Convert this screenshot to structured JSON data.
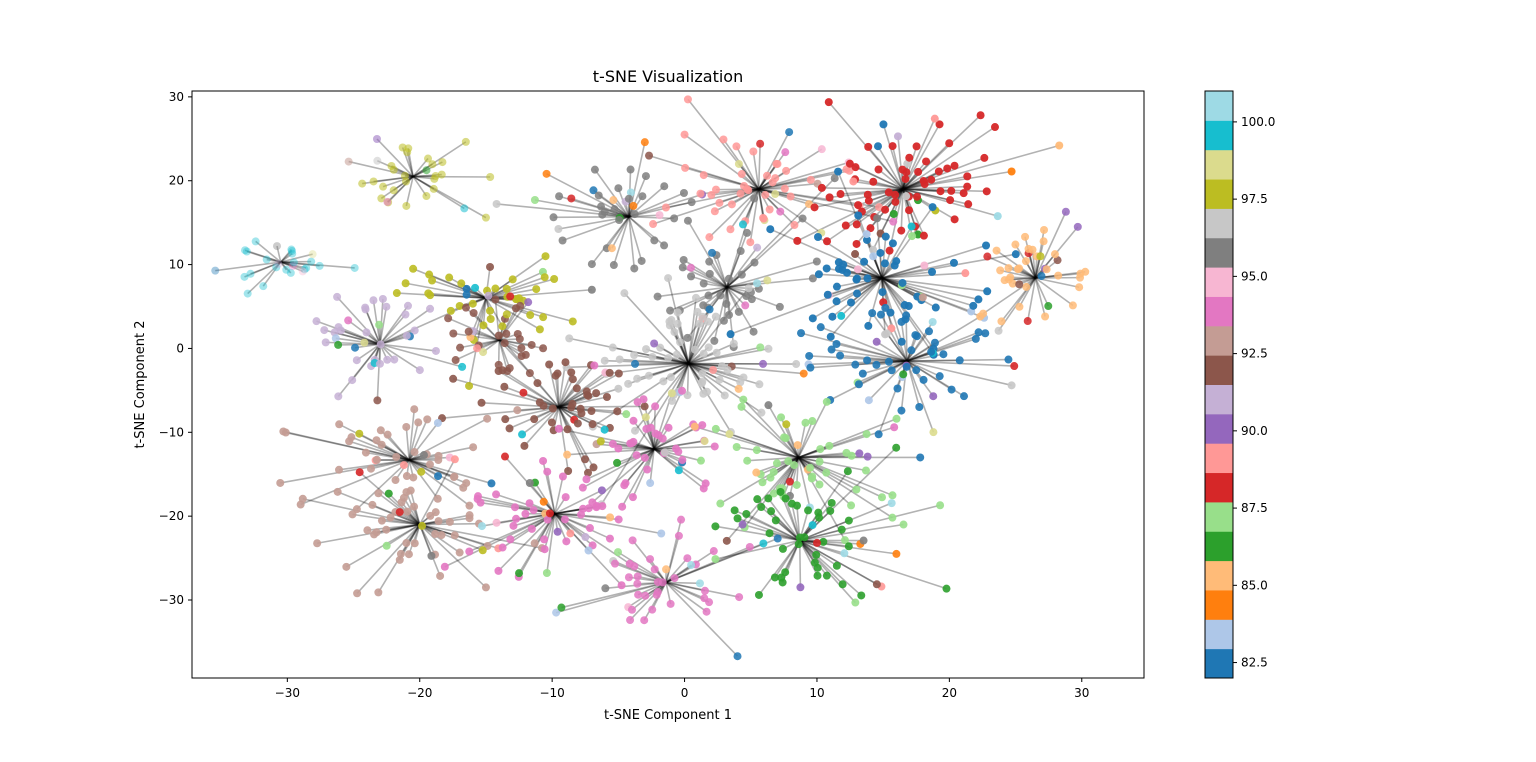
{
  "chart_data": {
    "type": "scatter",
    "title": "t-SNE Visualization",
    "xlabel": "t-SNE Component 1",
    "ylabel": "t-SNE Component 2",
    "xlim": [
      -37.2,
      34.7
    ],
    "ylim": [
      -39.3,
      30.7
    ],
    "xticks": [
      -30,
      -20,
      -10,
      0,
      10,
      20,
      30
    ],
    "yticks": [
      -30,
      -20,
      -10,
      0,
      10,
      20,
      30
    ],
    "colorbar": {
      "colormap": "tab20",
      "range": [
        82.0,
        101.0
      ],
      "ticks": [
        82.5,
        85.0,
        87.5,
        90.0,
        92.5,
        95.0,
        97.5,
        100.0
      ],
      "tick_labels": [
        "82.5",
        "85.0",
        "87.5",
        "90.0",
        "92.5",
        "95.0",
        "97.5",
        "100.0"
      ],
      "colors": [
        "#1f77b4",
        "#aec7e8",
        "#ff7f0e",
        "#ffbb78",
        "#2ca02c",
        "#98df8a",
        "#d62728",
        "#ff9896",
        "#9467bd",
        "#c5b0d5",
        "#8c564b",
        "#c49c94",
        "#e377c2",
        "#f7b6d2",
        "#7f7f7f",
        "#c7c7c7",
        "#bcbd22",
        "#dbdb8d",
        "#17becf",
        "#9edae5"
      ]
    },
    "edge_color": "#000000",
    "edge_alpha": 0.3,
    "clusters": [
      {
        "center": [
          -20.5,
          20.5
        ],
        "n": 30,
        "spread": 3.0,
        "color": "#bcbd22",
        "alpha": 0.55,
        "extras": [
          [
            -15.0,
            15.6,
            "#bcbd22"
          ]
        ]
      },
      {
        "center": [
          -30.5,
          10.3
        ],
        "n": 26,
        "spread": 2.8,
        "color": "#17becf",
        "alpha": 0.4,
        "extras": []
      },
      {
        "center": [
          -15.0,
          6.0
        ],
        "n": 40,
        "spread": 4.5,
        "color": "#bcbd22",
        "alpha": 0.9,
        "extras": [
          [
            -20.5,
            9.5,
            "#bcbd22"
          ],
          [
            -10.5,
            11.0,
            "#bcbd22"
          ],
          [
            -7.0,
            7.0,
            "#7f7f7f"
          ]
        ]
      },
      {
        "center": [
          -23.0,
          0.5
        ],
        "n": 38,
        "spread": 3.8,
        "color": "#c5b0d5",
        "alpha": 0.85,
        "extras": [
          [
            -16.8,
            -2.2,
            "#17becf"
          ],
          [
            -23.2,
            -6.2,
            "#8c564b"
          ]
        ]
      },
      {
        "center": [
          -14.0,
          1.0
        ],
        "n": 30,
        "spread": 3.5,
        "color": "#8c564b",
        "alpha": 0.85,
        "extras": []
      },
      {
        "center": [
          -4.2,
          15.7
        ],
        "n": 40,
        "spread": 4.5,
        "color": "#7f7f7f",
        "alpha": 0.85,
        "extras": [
          [
            -11.3,
            17.7,
            "#98df8a"
          ],
          [
            -3.0,
            24.6,
            "#ff7f0e"
          ]
        ]
      },
      {
        "center": [
          5.6,
          19.0
        ],
        "n": 55,
        "spread": 5.5,
        "color": "#ff9896",
        "alpha": 0.85,
        "extras": [
          [
            7.9,
            25.8,
            "#1f77b4"
          ],
          [
            0.0,
            25.5,
            "#ff9896"
          ]
        ]
      },
      {
        "center": [
          16.5,
          19.0
        ],
        "n": 75,
        "spread": 5.5,
        "color": "#d62728",
        "alpha": 0.95,
        "extras": [
          [
            28.3,
            24.2,
            "#ffbb78"
          ],
          [
            18.9,
            27.4,
            "#ff9896"
          ],
          [
            24.7,
            21.1,
            "#ff7f0e"
          ]
        ]
      },
      {
        "center": [
          3.2,
          7.3
        ],
        "n": 45,
        "spread": 5.0,
        "color": "#7f7f7f",
        "alpha": 0.85,
        "extras": []
      },
      {
        "center": [
          14.9,
          8.4
        ],
        "n": 70,
        "spread": 5.5,
        "color": "#1f77b4",
        "alpha": 0.95,
        "extras": []
      },
      {
        "center": [
          26.5,
          8.4
        ],
        "n": 40,
        "spread": 3.6,
        "color": "#ffbb78",
        "alpha": 0.85,
        "extras": [
          [
            29.7,
            14.5,
            "#9467bd"
          ],
          [
            28.8,
            16.3,
            "#9467bd"
          ]
        ]
      },
      {
        "center": [
          0.3,
          -1.8
        ],
        "n": 70,
        "spread": 6.0,
        "color": "#c7c7c7",
        "alpha": 0.85,
        "extras": [
          [
            9.0,
            -3.0,
            "#ff7f0e"
          ]
        ]
      },
      {
        "center": [
          16.8,
          -1.5
        ],
        "n": 55,
        "spread": 5.5,
        "color": "#1f77b4",
        "alpha": 0.9,
        "extras": [
          [
            24.7,
            -4.4,
            "#c7c7c7"
          ],
          [
            24.9,
            -2.1,
            "#d62728"
          ]
        ]
      },
      {
        "center": [
          -9.5,
          -7.0
        ],
        "n": 55,
        "spread": 5.0,
        "color": "#8c564b",
        "alpha": 0.9,
        "extras": [
          [
            -5.0,
            -4.8,
            "#c7c7c7"
          ]
        ]
      },
      {
        "center": [
          -2.3,
          -12.0
        ],
        "n": 50,
        "spread": 5.0,
        "color": "#e377c2",
        "alpha": 0.9,
        "extras": []
      },
      {
        "center": [
          8.6,
          -13.0
        ],
        "n": 60,
        "spread": 5.5,
        "color": "#98df8a",
        "alpha": 0.9,
        "extras": [
          [
            17.8,
            -13.0,
            "#1f77b4"
          ]
        ]
      },
      {
        "center": [
          -20.8,
          -13.3
        ],
        "n": 45,
        "spread": 5.0,
        "color": "#c49c94",
        "alpha": 0.9,
        "extras": [
          [
            -30.3,
            -9.9,
            "#c49c94"
          ]
        ]
      },
      {
        "center": [
          -20.0,
          -21.0
        ],
        "n": 50,
        "spread": 5.0,
        "color": "#c49c94",
        "alpha": 0.9,
        "extras": [
          [
            -15.0,
            -28.5,
            "#c49c94"
          ],
          [
            -26.2,
            -17.1,
            "#c49c94"
          ]
        ]
      },
      {
        "center": [
          -9.8,
          -19.7
        ],
        "n": 55,
        "spread": 5.0,
        "color": "#e377c2",
        "alpha": 0.9,
        "extras": [
          [
            -12.5,
            -26.8,
            "#2ca02c"
          ]
        ]
      },
      {
        "center": [
          8.7,
          -22.9
        ],
        "n": 55,
        "spread": 5.5,
        "color": "#2ca02c",
        "alpha": 0.9,
        "extras": [
          [
            19.3,
            -18.7,
            "#98df8a"
          ],
          [
            16.0,
            -24.5,
            "#ff7f0e"
          ],
          [
            12.9,
            -30.3,
            "#98df8a"
          ]
        ]
      },
      {
        "center": [
          -1.4,
          -27.9
        ],
        "n": 40,
        "spread": 4.5,
        "color": "#e377c2",
        "alpha": 0.85,
        "extras": [
          [
            4.0,
            -36.7,
            "#1f77b4"
          ],
          [
            -9.7,
            -31.5,
            "#aec7e8"
          ],
          [
            -9.3,
            -30.9,
            "#2ca02c"
          ]
        ]
      }
    ]
  }
}
